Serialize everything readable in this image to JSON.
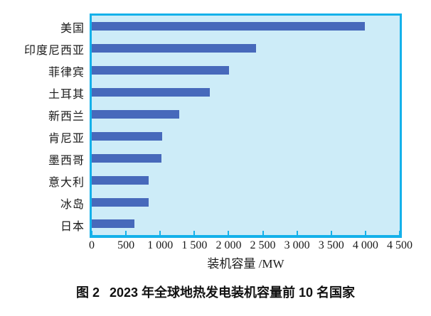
{
  "chart_data": {
    "type": "bar",
    "orientation": "horizontal",
    "title": "图 2 2023 年全球地热发电装机容量前 10 名国家",
    "categories": [
      "美国",
      "印度尼西亚",
      "菲律宾",
      "土耳其",
      "新西兰",
      "肯尼亚",
      "墨西哥",
      "意大利",
      "冰岛",
      "日本"
    ],
    "values": [
      3990,
      2400,
      2010,
      1720,
      1280,
      1030,
      1020,
      830,
      830,
      620
    ],
    "xlabel": "装机容量 /MW",
    "ylabel": "",
    "xlim": [
      0,
      4500
    ],
    "xticks": [
      0,
      500,
      1000,
      1500,
      2000,
      2500,
      3000,
      3500,
      4000,
      4500
    ],
    "xtick_labels": [
      "0",
      "500",
      "1 000",
      "1 500",
      "2 000",
      "2 500",
      "3 000",
      "3 500",
      "4 000",
      "4 500"
    ],
    "grid": false,
    "legend": null,
    "colors": {
      "bar": "#4769bb",
      "plot_background": "#cdecf8",
      "frame": "#14b1ea",
      "text": "#1a1a1a"
    }
  },
  "caption": {
    "prefix": "图 2",
    "text": "2023 年全球地热发电装机容量前 10 名国家"
  }
}
